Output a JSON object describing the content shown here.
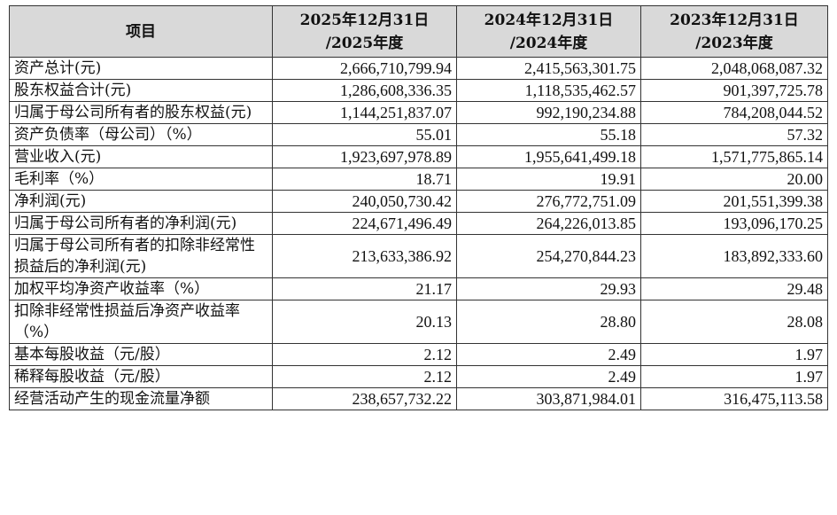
{
  "table": {
    "headers": [
      {
        "lines": [
          "项目"
        ]
      },
      {
        "lines": [
          "2025年12月31日",
          "/2025年度"
        ]
      },
      {
        "lines": [
          "2024年12月31日",
          "/2024年度"
        ]
      },
      {
        "lines": [
          "2023年12月31日",
          "/2023年度"
        ]
      }
    ],
    "rows": [
      {
        "label": "资产总计(元)",
        "values": [
          "2,666,710,799.94",
          "2,415,563,301.75",
          "2,048,068,087.32"
        ]
      },
      {
        "label": "股东权益合计(元)",
        "values": [
          "1,286,608,336.35",
          "1,118,535,462.57",
          "901,397,725.78"
        ]
      },
      {
        "label": "归属于母公司所有者的股东权益(元)",
        "values": [
          "1,144,251,837.07",
          "992,190,234.88",
          "784,208,044.52"
        ]
      },
      {
        "label": "资产负债率（母公司）（%）",
        "values": [
          "55.01",
          "55.18",
          "57.32"
        ]
      },
      {
        "label": "营业收入(元)",
        "values": [
          "1,923,697,978.89",
          "1,955,641,499.18",
          "1,571,775,865.14"
        ]
      },
      {
        "label": "毛利率（%）",
        "values": [
          "18.71",
          "19.91",
          "20.00"
        ]
      },
      {
        "label": "净利润(元)",
        "values": [
          "240,050,730.42",
          "276,772,751.09",
          "201,551,399.38"
        ]
      },
      {
        "label": "归属于母公司所有者的净利润(元)",
        "values": [
          "224,671,496.49",
          "264,226,013.85",
          "193,096,170.25"
        ]
      },
      {
        "label": "归属于母公司所有者的扣除非经常性损益后的净利润(元)",
        "values": [
          "213,633,386.92",
          "254,270,844.23",
          "183,892,333.60"
        ]
      },
      {
        "label": "加权平均净资产收益率（%）",
        "values": [
          "21.17",
          "29.93",
          "29.48"
        ]
      },
      {
        "label": "扣除非经常性损益后净资产收益率（%）",
        "values": [
          "20.13",
          "28.80",
          "28.08"
        ]
      },
      {
        "label": "基本每股收益（元/股）",
        "values": [
          "2.12",
          "2.49",
          "1.97"
        ]
      },
      {
        "label": "稀释每股收益（元/股）",
        "values": [
          "2.12",
          "2.49",
          "1.97"
        ]
      },
      {
        "label": "经营活动产生的现金流量净额",
        "values": [
          "238,657,732.22",
          "303,871,984.01",
          "316,475,113.58"
        ]
      }
    ]
  }
}
